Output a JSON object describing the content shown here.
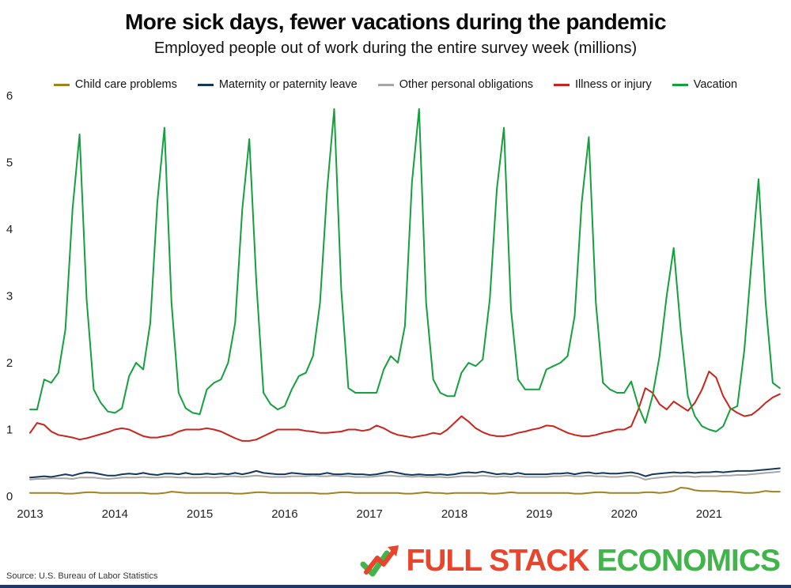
{
  "header": {
    "title": "More sick days, fewer vacations during the pandemic",
    "subtitle": "Employed people out of work during the entire survey week (millions)"
  },
  "footer": {
    "source": "Source: U.S. Bureau of Labor Statistics",
    "logo_text_1": "FULL STACK",
    "logo_text_2": "ECONOMICS",
    "logo_color_1": "#e9442c",
    "logo_color_2": "#41b549",
    "bar_color": "#1f3864"
  },
  "chart_data": {
    "type": "line",
    "title": "More sick days, fewer vacations during the pandemic",
    "subtitle": "Employed people out of work during the entire survey week (millions)",
    "xlabel": "",
    "ylabel": "",
    "x_start": "2013-01",
    "x_end": "2021-11",
    "frequency": "monthly",
    "x_tick_labels": [
      "2013",
      "2014",
      "2015",
      "2016",
      "2017",
      "2018",
      "2019",
      "2020",
      "2021"
    ],
    "y_ticks": [
      0,
      1,
      2,
      3,
      4,
      5,
      6
    ],
    "ylim": [
      0,
      6
    ],
    "grid": false,
    "legend_position": "top",
    "series": [
      {
        "name": "Child care problems",
        "color": "#a0821e",
        "values": [
          0.05,
          0.05,
          0.05,
          0.05,
          0.05,
          0.04,
          0.04,
          0.05,
          0.06,
          0.06,
          0.05,
          0.05,
          0.05,
          0.05,
          0.05,
          0.05,
          0.05,
          0.04,
          0.04,
          0.05,
          0.07,
          0.06,
          0.05,
          0.05,
          0.05,
          0.05,
          0.05,
          0.05,
          0.05,
          0.04,
          0.04,
          0.05,
          0.06,
          0.06,
          0.05,
          0.05,
          0.05,
          0.05,
          0.05,
          0.05,
          0.05,
          0.04,
          0.04,
          0.05,
          0.06,
          0.06,
          0.05,
          0.05,
          0.05,
          0.05,
          0.05,
          0.05,
          0.05,
          0.04,
          0.04,
          0.05,
          0.06,
          0.05,
          0.05,
          0.04,
          0.05,
          0.05,
          0.05,
          0.05,
          0.05,
          0.04,
          0.04,
          0.05,
          0.06,
          0.05,
          0.05,
          0.05,
          0.05,
          0.05,
          0.05,
          0.05,
          0.05,
          0.04,
          0.04,
          0.05,
          0.06,
          0.06,
          0.05,
          0.05,
          0.05,
          0.05,
          0.05,
          0.06,
          0.06,
          0.05,
          0.06,
          0.08,
          0.13,
          0.12,
          0.09,
          0.08,
          0.08,
          0.08,
          0.07,
          0.07,
          0.06,
          0.05,
          0.05,
          0.06,
          0.08,
          0.07,
          0.07
        ]
      },
      {
        "name": "Maternity or paternity leave",
        "color": "#17365d",
        "values": [
          0.28,
          0.29,
          0.3,
          0.29,
          0.31,
          0.33,
          0.31,
          0.34,
          0.36,
          0.35,
          0.33,
          0.31,
          0.31,
          0.33,
          0.34,
          0.33,
          0.35,
          0.33,
          0.32,
          0.34,
          0.34,
          0.33,
          0.35,
          0.33,
          0.33,
          0.34,
          0.33,
          0.34,
          0.33,
          0.35,
          0.33,
          0.35,
          0.38,
          0.35,
          0.34,
          0.33,
          0.33,
          0.35,
          0.34,
          0.33,
          0.33,
          0.33,
          0.35,
          0.33,
          0.33,
          0.34,
          0.33,
          0.33,
          0.32,
          0.33,
          0.35,
          0.37,
          0.35,
          0.33,
          0.32,
          0.33,
          0.32,
          0.32,
          0.33,
          0.32,
          0.33,
          0.35,
          0.36,
          0.35,
          0.37,
          0.35,
          0.33,
          0.34,
          0.33,
          0.35,
          0.33,
          0.33,
          0.33,
          0.33,
          0.34,
          0.34,
          0.35,
          0.33,
          0.35,
          0.36,
          0.34,
          0.35,
          0.34,
          0.34,
          0.35,
          0.36,
          0.34,
          0.3,
          0.33,
          0.34,
          0.35,
          0.36,
          0.35,
          0.36,
          0.35,
          0.36,
          0.36,
          0.37,
          0.36,
          0.37,
          0.38,
          0.38,
          0.38,
          0.39,
          0.4,
          0.41,
          0.42
        ]
      },
      {
        "name": "Other personal obligations",
        "color": "#a6a6a6",
        "values": [
          0.25,
          0.26,
          0.26,
          0.27,
          0.27,
          0.27,
          0.26,
          0.28,
          0.28,
          0.28,
          0.27,
          0.26,
          0.27,
          0.28,
          0.28,
          0.28,
          0.29,
          0.28,
          0.28,
          0.29,
          0.29,
          0.28,
          0.28,
          0.28,
          0.28,
          0.29,
          0.28,
          0.29,
          0.3,
          0.3,
          0.29,
          0.3,
          0.31,
          0.3,
          0.29,
          0.29,
          0.29,
          0.3,
          0.3,
          0.3,
          0.31,
          0.3,
          0.3,
          0.31,
          0.3,
          0.3,
          0.29,
          0.29,
          0.29,
          0.3,
          0.31,
          0.31,
          0.3,
          0.3,
          0.29,
          0.3,
          0.29,
          0.29,
          0.29,
          0.28,
          0.29,
          0.3,
          0.3,
          0.3,
          0.31,
          0.3,
          0.29,
          0.3,
          0.29,
          0.3,
          0.29,
          0.29,
          0.29,
          0.29,
          0.3,
          0.3,
          0.31,
          0.3,
          0.3,
          0.31,
          0.3,
          0.3,
          0.29,
          0.29,
          0.3,
          0.31,
          0.29,
          0.25,
          0.27,
          0.28,
          0.29,
          0.3,
          0.3,
          0.3,
          0.29,
          0.3,
          0.3,
          0.3,
          0.31,
          0.31,
          0.32,
          0.32,
          0.33,
          0.34,
          0.35,
          0.36,
          0.37
        ]
      },
      {
        "name": "Illness or injury",
        "color": "#c9241c",
        "values": [
          0.95,
          1.1,
          1.07,
          0.97,
          0.92,
          0.9,
          0.88,
          0.85,
          0.87,
          0.9,
          0.93,
          0.96,
          1.0,
          1.02,
          1.0,
          0.95,
          0.9,
          0.88,
          0.88,
          0.9,
          0.92,
          0.97,
          1.0,
          1.0,
          1.0,
          1.02,
          1.0,
          0.97,
          0.92,
          0.87,
          0.83,
          0.83,
          0.85,
          0.9,
          0.95,
          1.0,
          1.0,
          1.0,
          1.0,
          0.98,
          0.97,
          0.95,
          0.95,
          0.96,
          0.97,
          1.0,
          1.0,
          0.98,
          1.0,
          1.06,
          1.02,
          0.96,
          0.92,
          0.9,
          0.88,
          0.9,
          0.92,
          0.95,
          0.93,
          1.0,
          1.1,
          1.2,
          1.12,
          1.02,
          0.96,
          0.92,
          0.9,
          0.9,
          0.92,
          0.95,
          0.97,
          1.0,
          1.02,
          1.06,
          1.05,
          1.0,
          0.95,
          0.92,
          0.9,
          0.9,
          0.92,
          0.95,
          0.97,
          1.0,
          1.0,
          1.05,
          1.3,
          1.62,
          1.55,
          1.38,
          1.3,
          1.42,
          1.35,
          1.28,
          1.4,
          1.6,
          1.87,
          1.78,
          1.5,
          1.32,
          1.25,
          1.2,
          1.22,
          1.3,
          1.4,
          1.48,
          1.53
        ]
      },
      {
        "name": "Vacation",
        "color": "#14a03c",
        "values": [
          1.3,
          1.3,
          1.75,
          1.7,
          1.85,
          2.5,
          4.3,
          5.42,
          2.95,
          1.6,
          1.4,
          1.27,
          1.25,
          1.32,
          1.8,
          2.0,
          1.9,
          2.6,
          4.4,
          5.52,
          2.9,
          1.55,
          1.32,
          1.25,
          1.23,
          1.6,
          1.7,
          1.75,
          2.0,
          2.6,
          4.3,
          5.35,
          3.2,
          1.55,
          1.38,
          1.3,
          1.35,
          1.6,
          1.8,
          1.85,
          2.1,
          2.9,
          4.6,
          5.8,
          3.1,
          1.62,
          1.55,
          1.55,
          1.55,
          1.55,
          1.9,
          2.1,
          2.0,
          2.55,
          4.7,
          5.8,
          2.9,
          1.75,
          1.55,
          1.5,
          1.5,
          1.85,
          2.0,
          1.95,
          2.05,
          2.95,
          4.6,
          5.52,
          2.8,
          1.75,
          1.6,
          1.6,
          1.6,
          1.9,
          1.95,
          2.0,
          2.1,
          2.7,
          4.4,
          5.38,
          2.9,
          1.7,
          1.6,
          1.55,
          1.55,
          1.72,
          1.35,
          1.1,
          1.5,
          2.1,
          3.0,
          3.72,
          2.5,
          1.5,
          1.2,
          1.05,
          1.0,
          0.97,
          1.05,
          1.3,
          1.35,
          2.2,
          3.5,
          4.75,
          2.9,
          1.7,
          1.62
        ]
      }
    ]
  }
}
